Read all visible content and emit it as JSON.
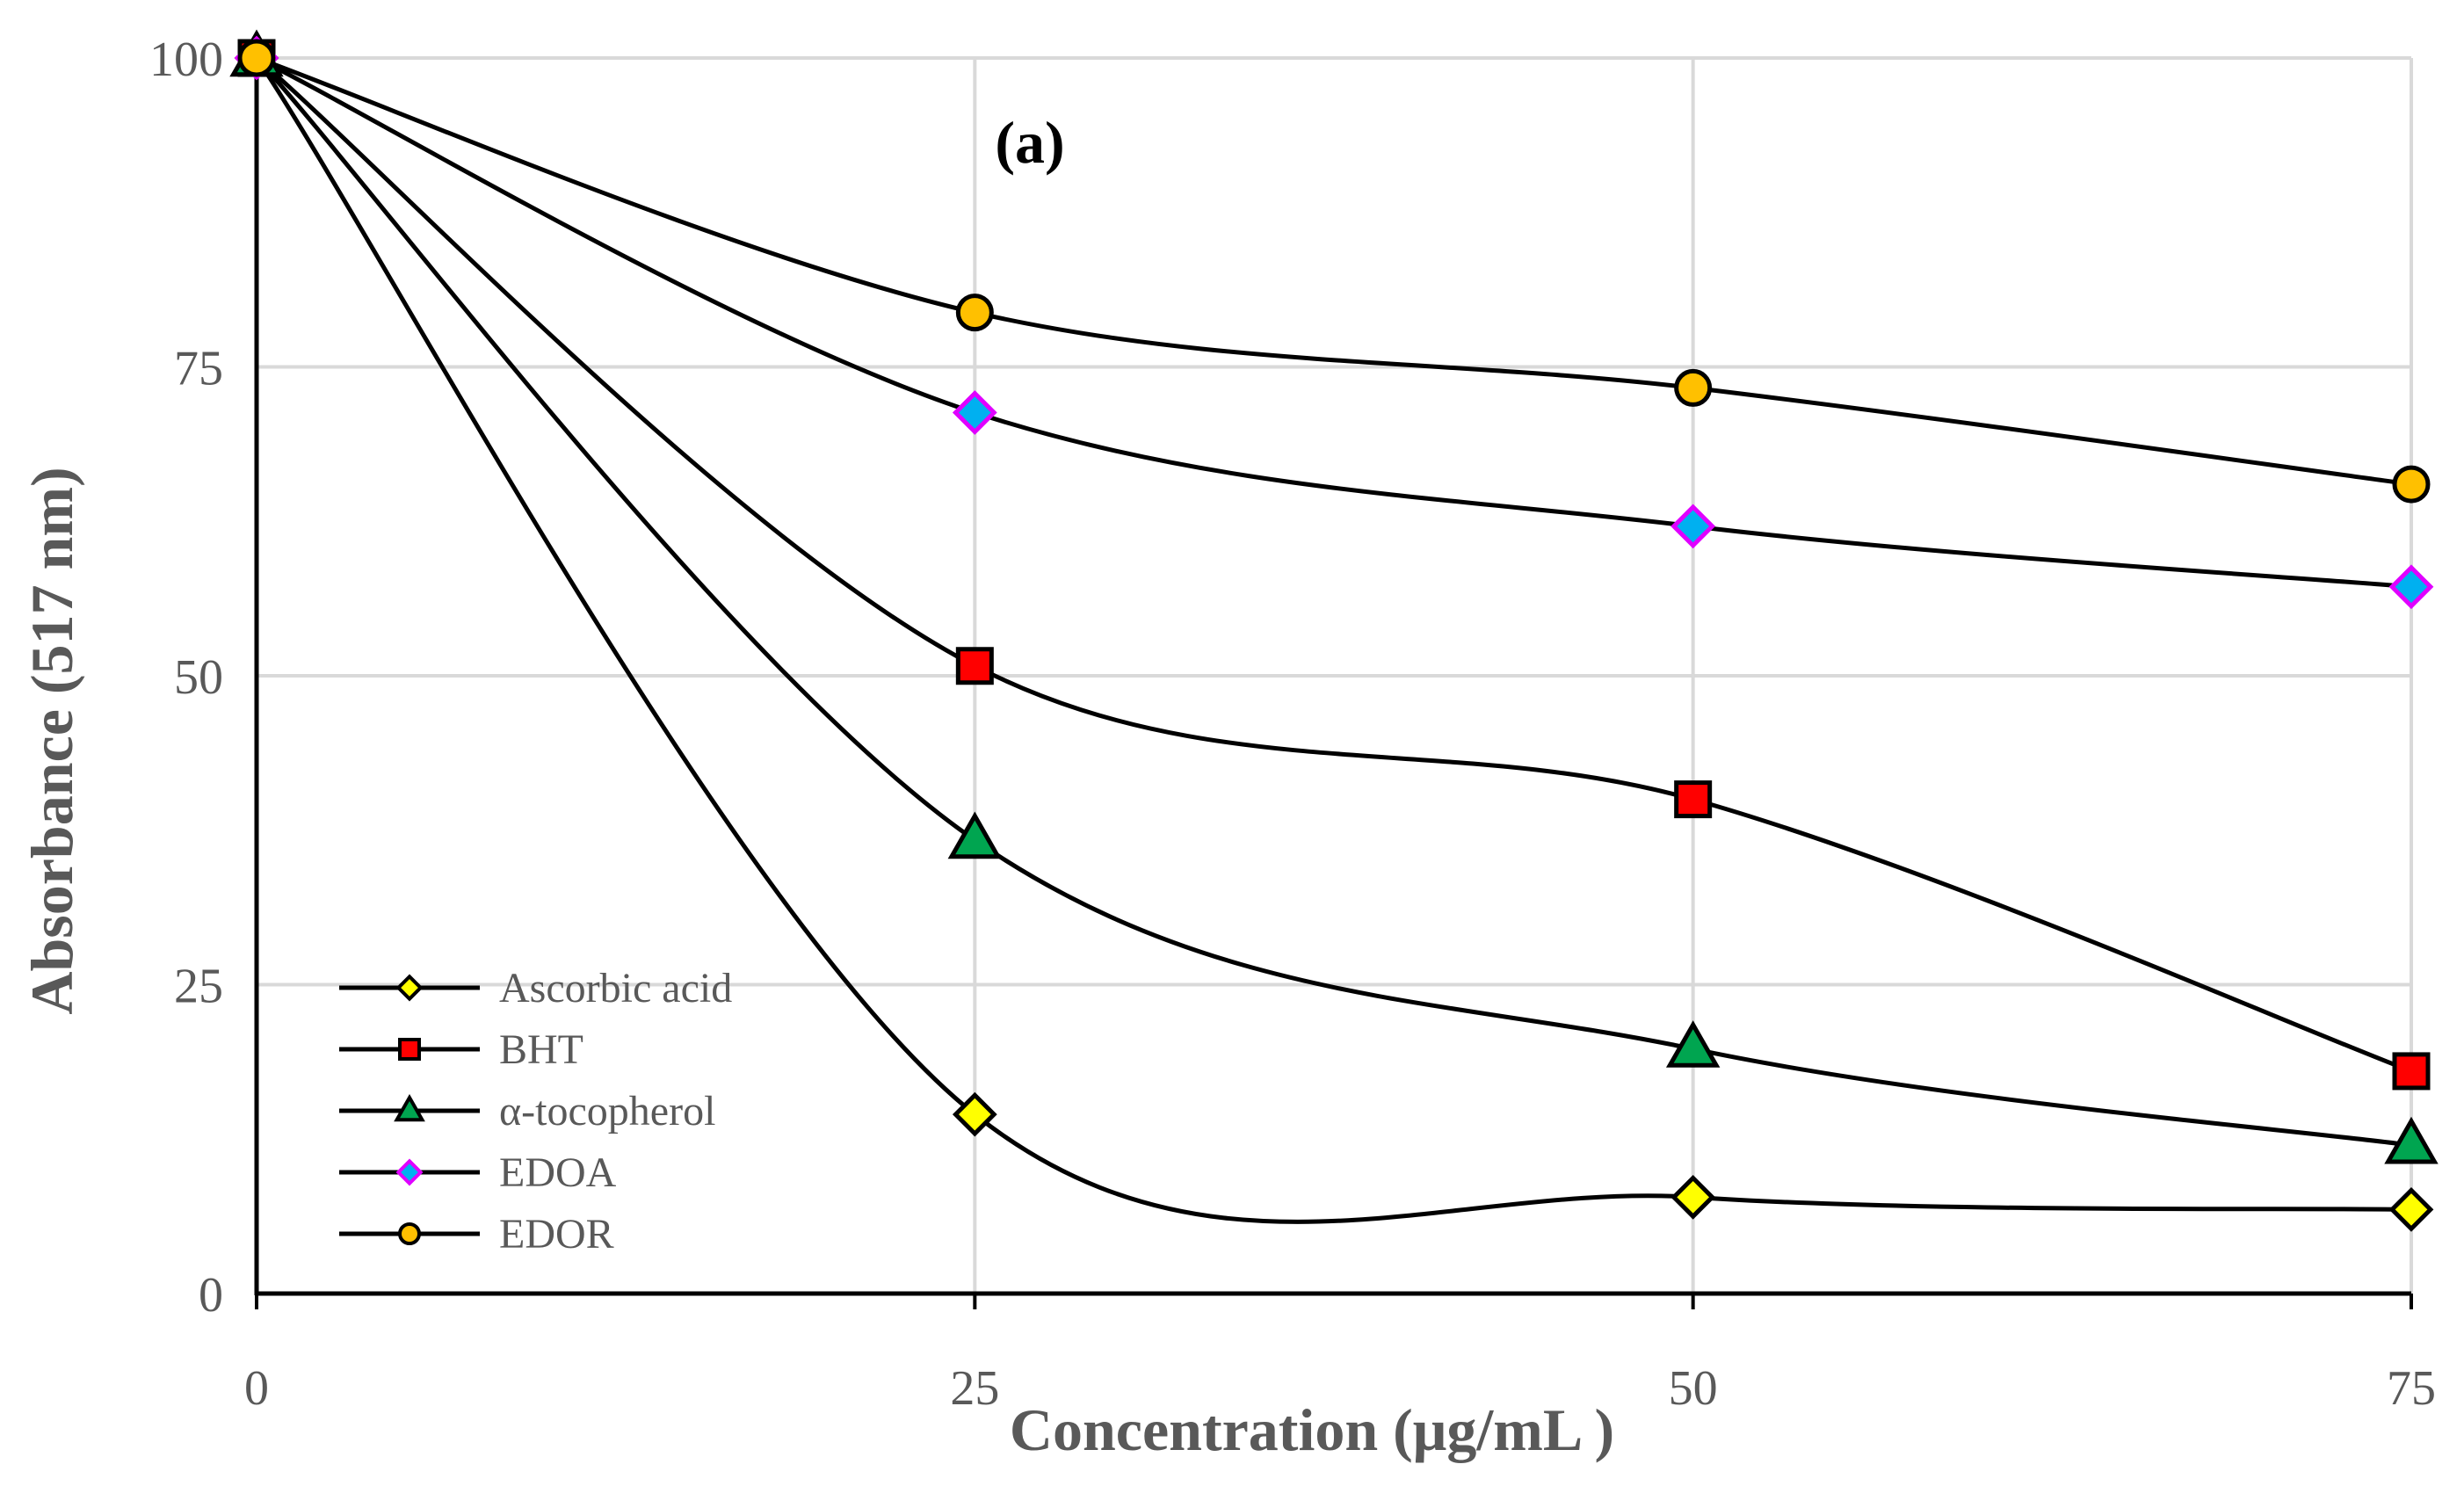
{
  "chart_data": {
    "type": "line",
    "panel_label": "(a)",
    "xlabel": "Concentration (μg/mL )",
    "ylabel": "Absorbance (517 nm)",
    "x": [
      0,
      25,
      50,
      75
    ],
    "x_tick_labels": [
      "0",
      "25",
      "50",
      "75"
    ],
    "y_tick_values": [
      0,
      25,
      50,
      75,
      100
    ],
    "y_tick_labels": [
      "0",
      "25",
      "50",
      "75",
      "100"
    ],
    "xlim": [
      0,
      75
    ],
    "ylim": [
      0,
      100
    ],
    "grid": true,
    "smooth": true,
    "legend_position": "bottom-left",
    "series": [
      {
        "name": "Ascorbic acid",
        "marker": "diamond",
        "color": "#FFFF00",
        "values": [
          100,
          14.5,
          7.8,
          6.8
        ]
      },
      {
        "name": "BHT",
        "marker": "square",
        "color": "#FF0000",
        "values": [
          100,
          50.8,
          40.0,
          18.0
        ]
      },
      {
        "name": "α-tocopherol",
        "marker": "triangle",
        "color": "#00A550",
        "values": [
          100,
          36.7,
          19.8,
          12.0
        ]
      },
      {
        "name": "EDOA",
        "marker": "diamond",
        "color": "#00B0F0",
        "border_color": "#E000FF",
        "values": [
          100,
          71.3,
          62.1,
          57.2
        ]
      },
      {
        "name": "EDOR",
        "marker": "circle",
        "color": "#FFC000",
        "values": [
          100,
          79.4,
          73.3,
          65.5
        ]
      }
    ]
  }
}
